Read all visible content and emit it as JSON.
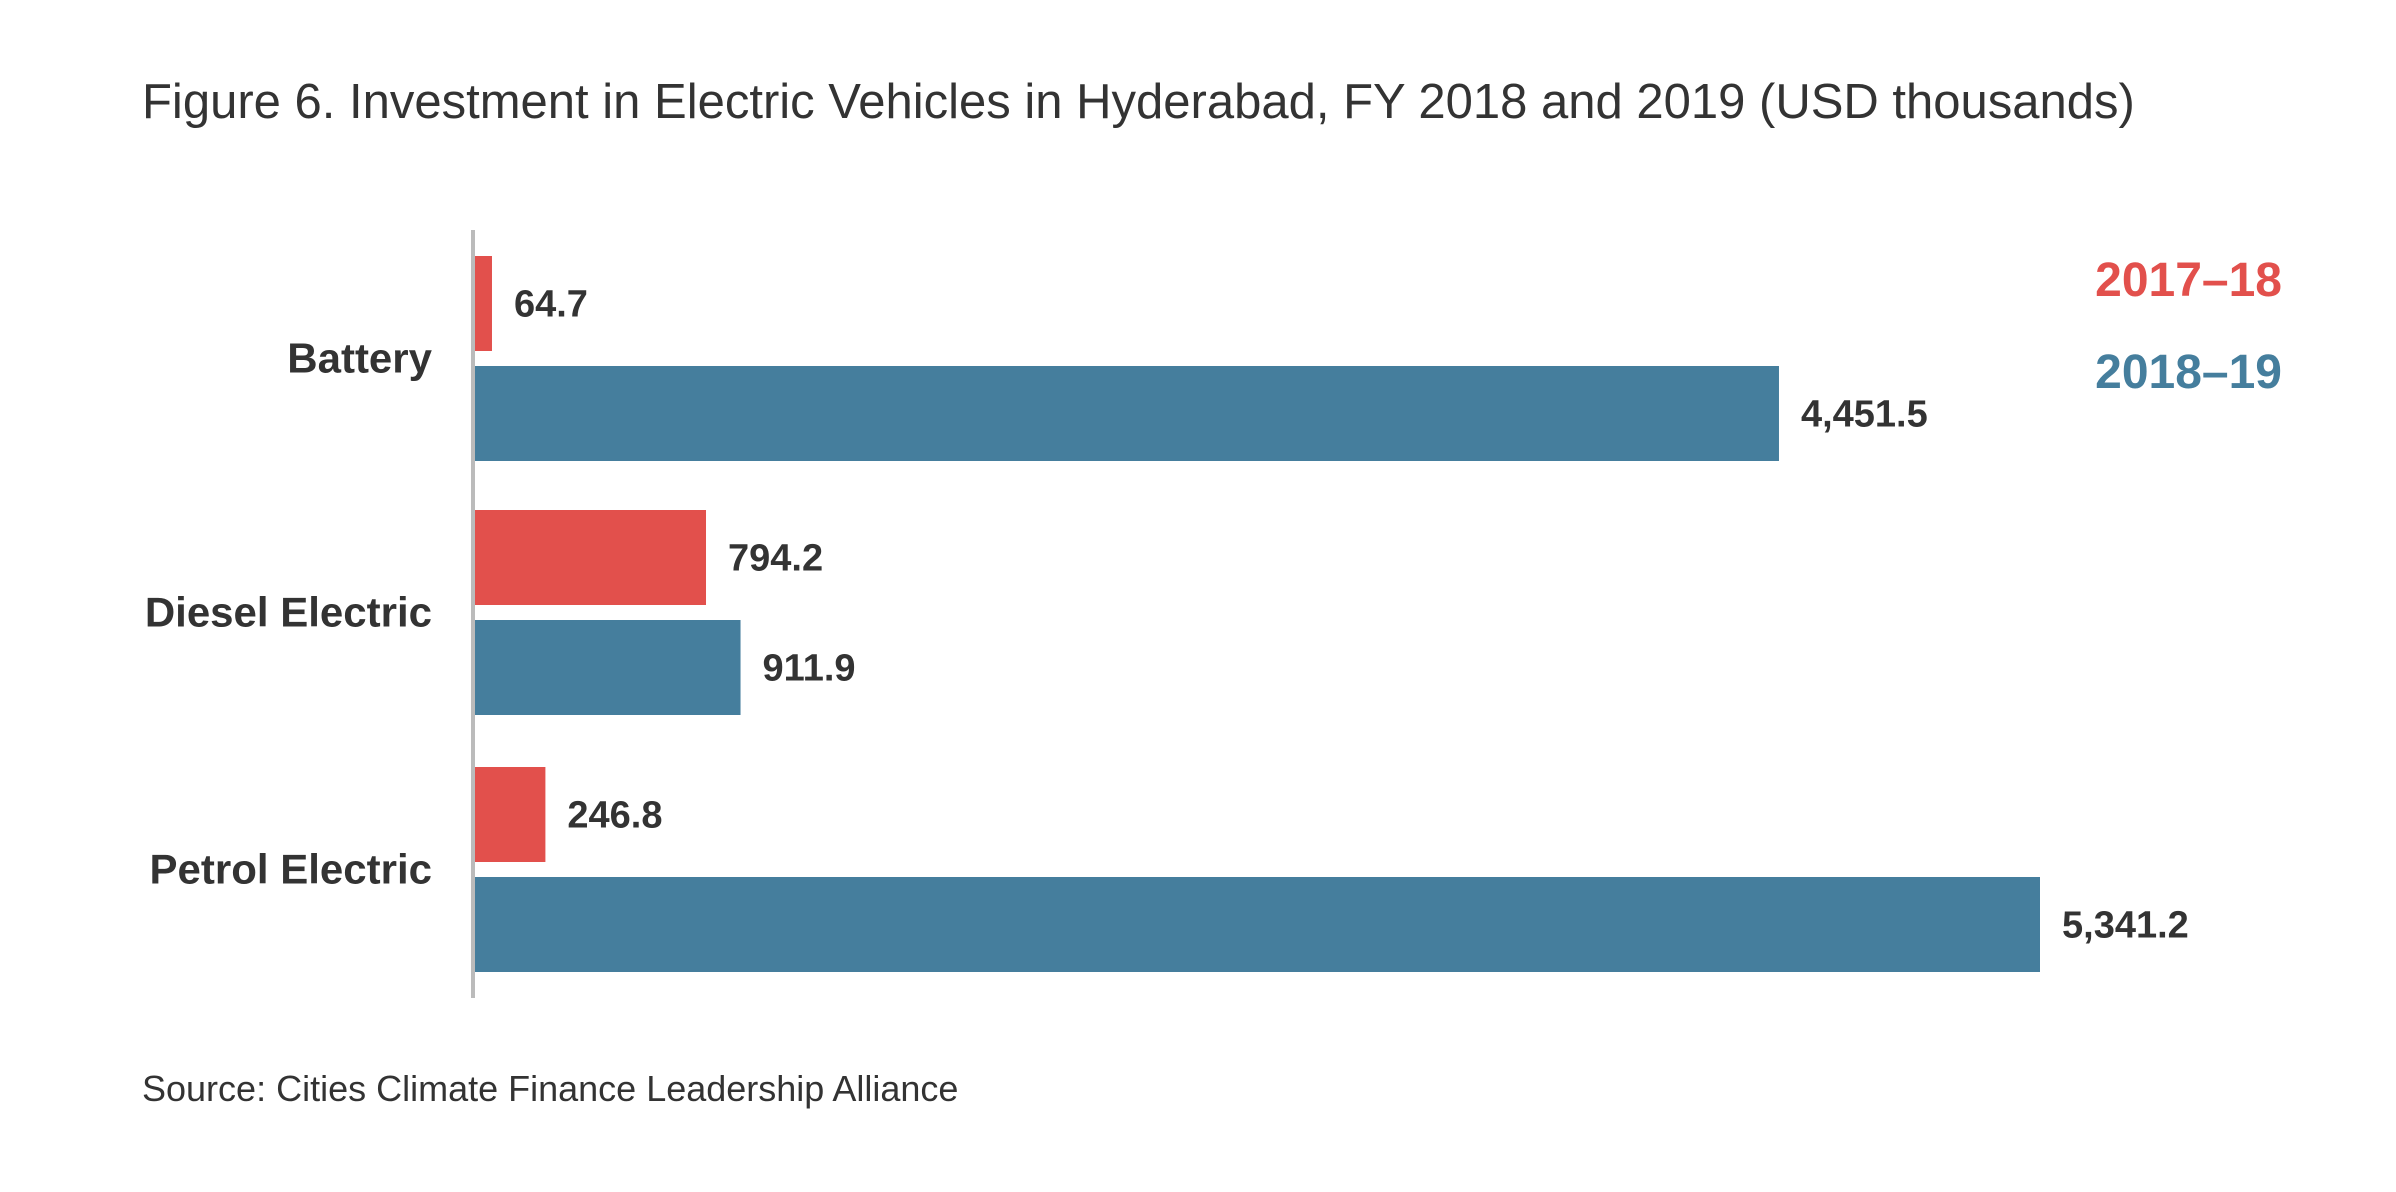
{
  "title": "Figure 6. Investment in Electric Vehicles in Hyderabad, FY 2018 and 2019 (USD thousands)",
  "source": "Source: Cities Climate Finance Leadership Alliance",
  "chart_data": {
    "type": "bar",
    "orientation": "horizontal",
    "title": "Figure 6. Investment in Electric Vehicles in Hyderabad, FY 2018 and 2019 (USD thousands)",
    "categories": [
      "Battery",
      "Diesel Electric",
      "Petrol Electric"
    ],
    "series": [
      {
        "name": "2017–18",
        "color": "#e2504c",
        "values": [
          64.7,
          794.2,
          246.8
        ],
        "labels": [
          "64.7",
          "794.2",
          "246.8"
        ]
      },
      {
        "name": "2018–19",
        "color": "#457e9d",
        "values": [
          4451.5,
          911.9,
          5341.2
        ],
        "labels": [
          "4,451.5",
          "911.9",
          "5,341.2"
        ]
      }
    ],
    "xlim": [
      0,
      5341.2
    ],
    "grid": false,
    "axis_color": "#bbbbbb",
    "legend_position": "top-right"
  }
}
